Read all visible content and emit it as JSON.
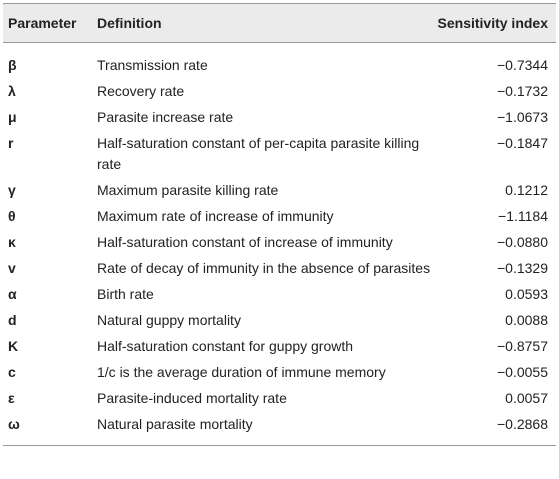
{
  "table": {
    "header": [
      "Parameter",
      "Definition",
      "Sensitivity index"
    ],
    "rows": [
      [
        "β",
        "Transmission rate",
        "−0.7344"
      ],
      [
        "λ",
        "Recovery rate",
        "−0.1732"
      ],
      [
        "μ",
        "Parasite increase rate",
        "−1.0673"
      ],
      [
        "r",
        "Half-saturation constant of per-capita parasite killing rate",
        "−0.1847"
      ],
      [
        "γ",
        "Maximum parasite killing rate",
        "0.1212"
      ],
      [
        "θ",
        "Maximum rate of increase of immunity",
        "−1.1184"
      ],
      [
        "κ",
        "Half-saturation constant of increase of immunity",
        "−0.0880"
      ],
      [
        "v",
        "Rate of decay of immunity in the absence of parasites",
        "−0.1329"
      ],
      [
        "α",
        "Birth rate",
        "0.0593"
      ],
      [
        "d",
        "Natural guppy mortality",
        "0.0088"
      ],
      [
        "K",
        "Half-saturation constant for guppy growth",
        "−0.8757"
      ],
      [
        "c",
        "1/c is the average duration of immune memory",
        "−0.0055"
      ],
      [
        "ε",
        "Parasite-induced mortality rate",
        "0.0057"
      ],
      [
        "ω",
        "Natural parasite mortality",
        "−0.2868"
      ]
    ]
  }
}
